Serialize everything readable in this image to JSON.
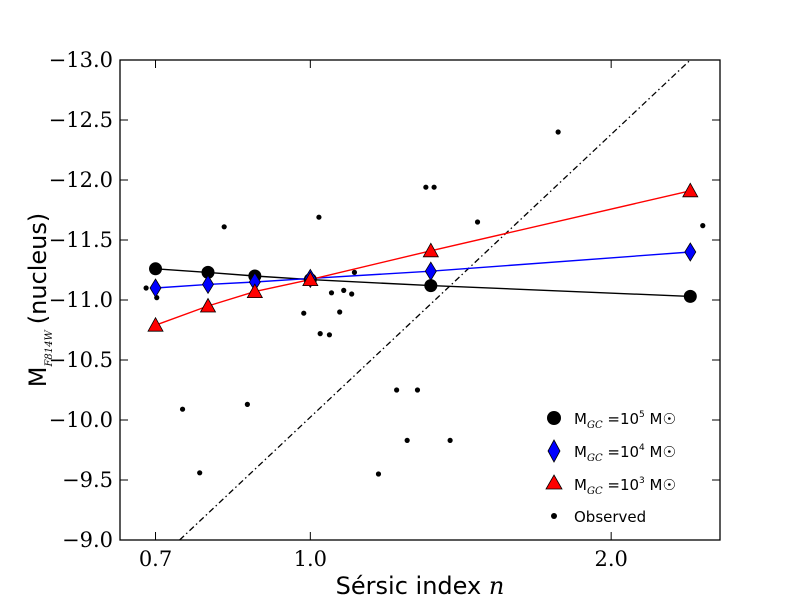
{
  "chart_data": {
    "type": "scatter",
    "title": "",
    "xlabel": "Sérsic index",
    "xlabel_var": "n",
    "ylabel_main": "M",
    "ylabel_sub": "F814W",
    "ylabel_rest": "(nucleus)",
    "x_scale": "log",
    "xlim": [
      0.645,
      2.57
    ],
    "ylim": [
      -9.0,
      -13.0
    ],
    "x_ticks": [
      {
        "value": 0.7,
        "label": "0.7"
      },
      {
        "value": 1.0,
        "label": "1.0"
      },
      {
        "value": 2.0,
        "label": "2.0"
      }
    ],
    "y_ticks": [
      {
        "value": -13.0,
        "label": "−13.0"
      },
      {
        "value": -12.5,
        "label": "−12.5"
      },
      {
        "value": -12.0,
        "label": "−12.0"
      },
      {
        "value": -11.5,
        "label": "−11.5"
      },
      {
        "value": -11.0,
        "label": "−11.0"
      },
      {
        "value": -10.5,
        "label": "−10.5"
      },
      {
        "value": -10.0,
        "label": "−10.0"
      },
      {
        "value": -9.5,
        "label": "−9.5"
      },
      {
        "value": -9.0,
        "label": "−9.0"
      }
    ],
    "series": [
      {
        "name": "M_GC = 10^5 M☉",
        "legend_base": "10",
        "legend_exp": "5",
        "color": "#000000",
        "marker": "circle",
        "x": [
          0.7,
          0.79,
          0.88,
          1.0,
          1.32,
          2.4
        ],
        "y": [
          -11.26,
          -11.23,
          -11.2,
          -11.17,
          -11.12,
          -11.03
        ]
      },
      {
        "name": "M_GC = 10^4 M☉",
        "legend_base": "10",
        "legend_exp": "4",
        "color": "#0000ff",
        "marker": "diamond",
        "x": [
          0.7,
          0.79,
          0.88,
          1.0,
          1.32,
          2.4
        ],
        "y": [
          -11.1,
          -11.13,
          -11.15,
          -11.18,
          -11.24,
          -11.4
        ]
      },
      {
        "name": "M_GC = 10^3 M☉",
        "legend_base": "10",
        "legend_exp": "3",
        "color": "#ff0000",
        "marker": "triangle",
        "x": [
          0.7,
          0.79,
          0.88,
          1.0,
          1.32,
          2.4
        ],
        "y": [
          -10.79,
          -10.95,
          -11.07,
          -11.17,
          -11.41,
          -11.91
        ]
      }
    ],
    "observed": {
      "name": "Observed",
      "color": "#000000",
      "marker": "dot",
      "x": [
        0.685,
        0.702,
        0.745,
        0.775,
        0.82,
        0.865,
        0.875,
        0.985,
        1.02,
        1.023,
        1.045,
        1.05,
        1.07,
        1.08,
        1.1,
        1.107,
        1.17,
        1.22,
        1.25,
        1.28,
        1.305,
        1.33,
        1.38,
        1.47,
        1.77,
        2.47
      ],
      "y": [
        -11.1,
        -11.02,
        -10.09,
        -9.56,
        -11.61,
        -10.13,
        -11.06,
        -10.89,
        -11.69,
        -10.72,
        -10.71,
        -11.06,
        -10.9,
        -11.08,
        -11.05,
        -11.23,
        -9.55,
        -10.25,
        -9.83,
        -10.25,
        -11.94,
        -11.94,
        -9.83,
        -11.65,
        -12.4,
        -11.62
      ]
    },
    "reference_line": {
      "style": "dash-dot",
      "color": "#000000",
      "points": [
        [
          0.74,
          -9.0
        ],
        [
          2.4,
          -13.0
        ]
      ]
    },
    "legend_position": "bottom-right",
    "legend_prefix": "M",
    "legend_sub": "GC",
    "legend_unit": "M☉"
  }
}
